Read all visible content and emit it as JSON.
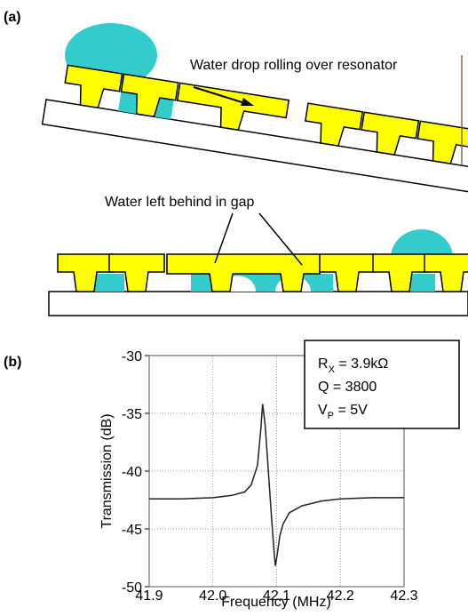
{
  "panel_labels": [
    "(a)",
    "(b)"
  ],
  "diagram": {
    "top_caption": "Water drop rolling over resonator",
    "bottom_caption": "Water left behind in gap"
  },
  "chart_data": {
    "type": "line",
    "xlabel": "Frequency (MHz)",
    "ylabel": "Transmission (dB)",
    "annotation": [
      {
        "text": "R",
        "sub": "X",
        "rest": " = 3.9kΩ"
      },
      {
        "text": "Q = 3800"
      },
      {
        "text": "V",
        "sub": "P",
        "rest": " = 5V"
      }
    ],
    "x": [
      41.9,
      41.95,
      42.0,
      42.03,
      42.05,
      42.06,
      42.07,
      42.075,
      42.078,
      42.082,
      42.087,
      42.092,
      42.096,
      42.098,
      42.101,
      42.105,
      42.11,
      42.12,
      42.14,
      42.17,
      42.2,
      42.25,
      42.3
    ],
    "series": [
      {
        "color": "#222222",
        "values": [
          -42.4,
          -42.4,
          -42.3,
          -42.1,
          -41.8,
          -41.2,
          -39.5,
          -36.5,
          -34.2,
          -36,
          -40,
          -44,
          -47,
          -48.2,
          -47.2,
          -45.6,
          -44.6,
          -43.6,
          -43,
          -42.6,
          -42.4,
          -42.3,
          -42.3
        ]
      }
    ],
    "xlim": [
      41.9,
      42.3
    ],
    "ylim": [
      -50,
      -30
    ],
    "xticks": [
      41.9,
      {
        "value": 42,
        "label": "42.0"
      },
      42.1,
      42.2,
      42.3
    ],
    "yticks": [
      -30,
      -35,
      -40,
      -45,
      -50
    ],
    "grid": true
  }
}
